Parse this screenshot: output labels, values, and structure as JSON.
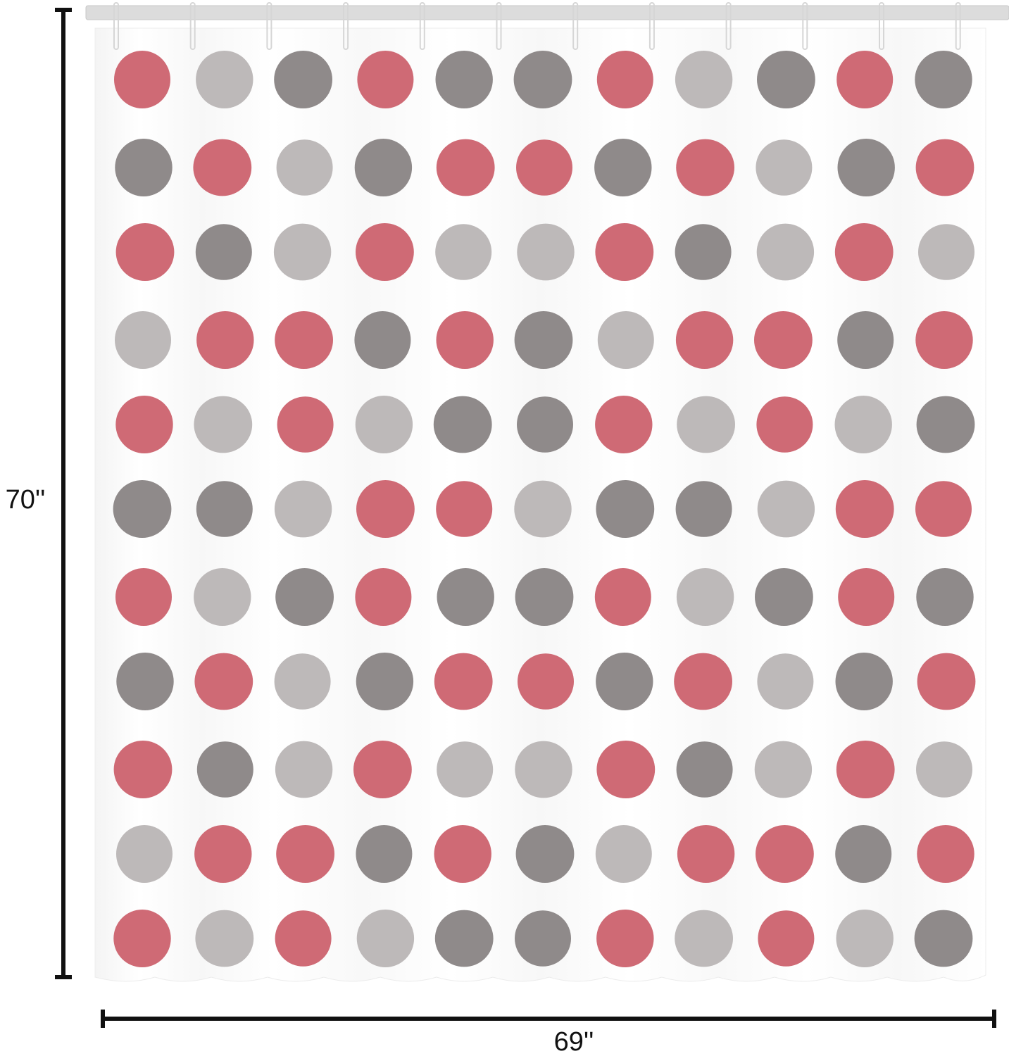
{
  "height_label": "70''",
  "width_label": "69''"
}
